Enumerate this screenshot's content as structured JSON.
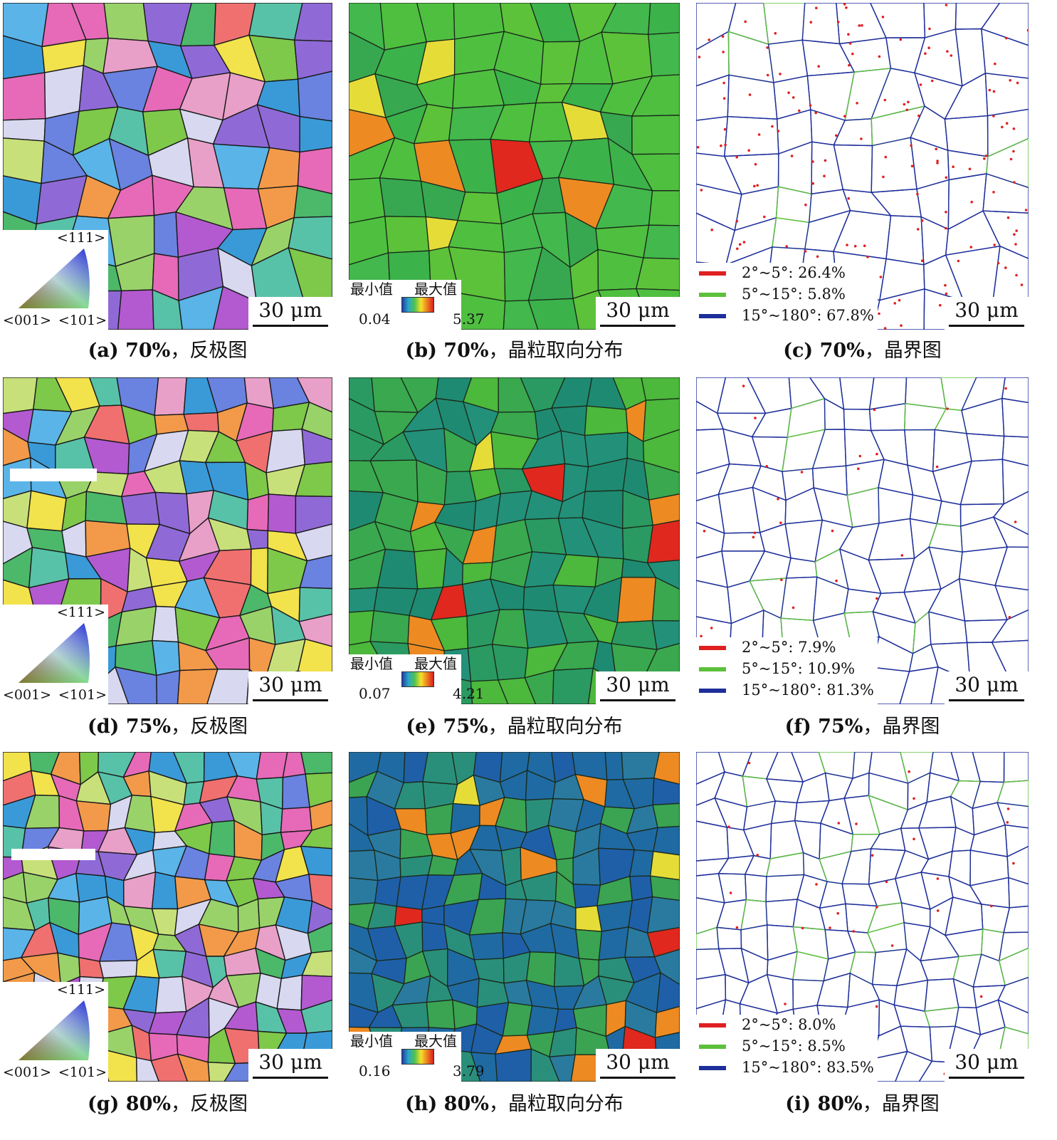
{
  "scale_label": "30 μm",
  "ipf_key": {
    "top": "<111>",
    "left": "<001>",
    "right": "<101>"
  },
  "kam_key": {
    "min_label": "最小值",
    "max_label": "最大值"
  },
  "rows": [
    {
      "ipf": {
        "caption_label": "(a) 70%",
        "caption_title": "反极图"
      },
      "kam": {
        "caption_label": "(b) 70%",
        "caption_title": "晶粒取向分布",
        "min": "0.04",
        "max": "5.37"
      },
      "gb": {
        "caption_label": "(c) 70%",
        "caption_title": "晶界图",
        "legend": [
          "2°~5°: 26.4%",
          "5°~15°: 5.8%",
          "15°~180°: 67.8%"
        ]
      }
    },
    {
      "ipf": {
        "caption_label": "(d) 75%",
        "caption_title": "反极图"
      },
      "kam": {
        "caption_label": "(e) 75%",
        "caption_title": "晶粒取向分布",
        "min": "0.07",
        "max": "4.21"
      },
      "gb": {
        "caption_label": "(f) 75%",
        "caption_title": "晶界图",
        "legend": [
          "2°~5°: 7.9%",
          "5°~15°: 10.9%",
          "15°~180°: 81.3%"
        ]
      }
    },
    {
      "ipf": {
        "caption_label": "(g) 80%",
        "caption_title": "反极图"
      },
      "kam": {
        "caption_label": "(h) 80%",
        "caption_title": "晶粒取向分布",
        "min": "0.16",
        "max": "3.79"
      },
      "gb": {
        "caption_label": "(i) 80%",
        "caption_title": "晶界图",
        "legend": [
          "2°~5°: 8.0%",
          "5°~15°: 8.5%",
          "15°~180°: 83.5%"
        ]
      }
    }
  ],
  "colors": {
    "gb_low": "#e02020",
    "gb_mid": "#5cc03c",
    "gb_high": "#1e2f9a",
    "ipf_palette": [
      "#7ec84a",
      "#e66ab8",
      "#f2e24c",
      "#8f6ad6",
      "#5ab4e8",
      "#f29a4a",
      "#58c2a8",
      "#b35ad0",
      "#4cb86a",
      "#e8a0c8",
      "#9ad26a",
      "#6a82e0",
      "#f07070",
      "#c8e07a",
      "#3a9ad8",
      "#d8d8f0"
    ],
    "kam_palette": {
      "row0": [
        "#3cb24a",
        "#43b84c",
        "#4fbf40",
        "#37a850",
        "#5cc23a"
      ],
      "row1": [
        "#2a9a62",
        "#1f8a72",
        "#3aa84e",
        "#4cb83c",
        "#23907a"
      ],
      "row2": [
        "#1f5fa8",
        "#2a7aa0",
        "#1f6aa2",
        "#3aa452",
        "#2a8f7a"
      ]
    }
  }
}
